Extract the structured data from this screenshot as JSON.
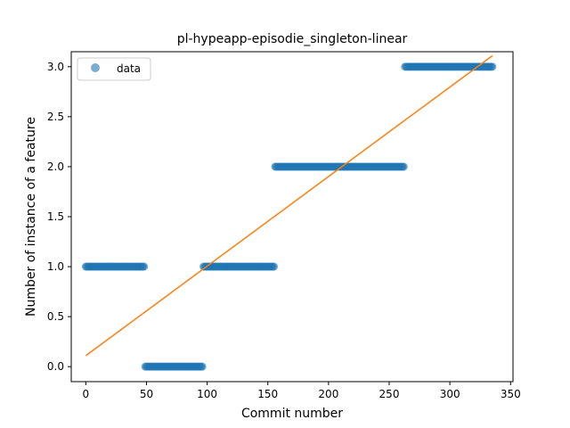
{
  "chart_data": {
    "type": "scatter",
    "title": "pl-hypeapp-episodie_singleton-linear",
    "xlabel": "Commit number",
    "ylabel": "Number of instance of a feature",
    "xlim": [
      -12,
      352
    ],
    "ylim": [
      -0.15,
      3.15
    ],
    "xticks": [
      0,
      50,
      100,
      150,
      200,
      250,
      300,
      350
    ],
    "yticks": [
      0.0,
      0.5,
      1.0,
      1.5,
      2.0,
      2.5,
      3.0
    ],
    "xtick_labels": [
      "0",
      "50",
      "100",
      "150",
      "200",
      "250",
      "300",
      "350"
    ],
    "ytick_labels": [
      "0.0",
      "0.5",
      "1.0",
      "1.5",
      "2.0",
      "2.5",
      "3.0"
    ],
    "legend": {
      "position": "top-left",
      "entries": [
        "data"
      ]
    },
    "grid": false,
    "colors": {
      "data": "#1f77b4",
      "fit": "#ff7f0e"
    },
    "series": [
      {
        "name": "data",
        "kind": "scatter",
        "segments": [
          {
            "x_start": 0,
            "x_end": 48,
            "y": 1.0
          },
          {
            "x_start": 49,
            "x_end": 96,
            "y": 0.0
          },
          {
            "x_start": 97,
            "x_end": 155,
            "y": 1.0
          },
          {
            "x_start": 156,
            "x_end": 262,
            "y": 2.0
          },
          {
            "x_start": 263,
            "x_end": 335,
            "y": 3.0
          }
        ]
      },
      {
        "kind": "line",
        "x": [
          0,
          335
        ],
        "y": [
          0.11,
          3.11
        ]
      }
    ]
  }
}
